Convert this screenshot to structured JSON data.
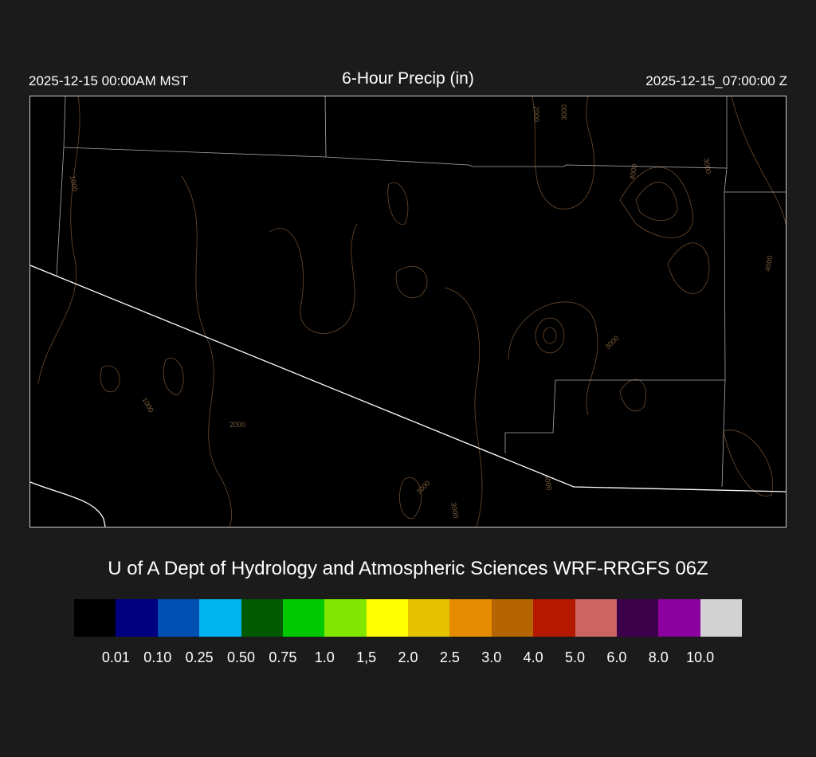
{
  "header": {
    "local_time": "2025-12-15 00:00AM MST",
    "title": "6-Hour Precip (in)",
    "utc_time": "2025-12-15_07:00:00 Z"
  },
  "map": {
    "contour_color": "#6b4a2e",
    "border_color": "#ffffff",
    "contour_labels": [
      "1000",
      "1000",
      "2000",
      "2000",
      "3000",
      "3000",
      "3000",
      "3000",
      "3000",
      "4000",
      "4000",
      "4000"
    ]
  },
  "credit": "U of A Dept of Hydrology and Atmospheric Sciences WRF-RRGFS 06Z",
  "colorbar": {
    "colors": [
      "#000000",
      "#000080",
      "#0050b4",
      "#00b4f0",
      "#005a00",
      "#00c800",
      "#82e600",
      "#ffff00",
      "#e6c300",
      "#e68c00",
      "#b46400",
      "#b41900",
      "#cd6464",
      "#3c004b",
      "#8c00a0",
      "#d2d2d2"
    ],
    "labels": [
      "0.01",
      "0.10",
      "0.25",
      "0.50",
      "0.75",
      "1.0",
      "1,5",
      "2.0",
      "2.5",
      "3.0",
      "4.0",
      "5.0",
      "6.0",
      "8.0",
      "10.0"
    ]
  }
}
